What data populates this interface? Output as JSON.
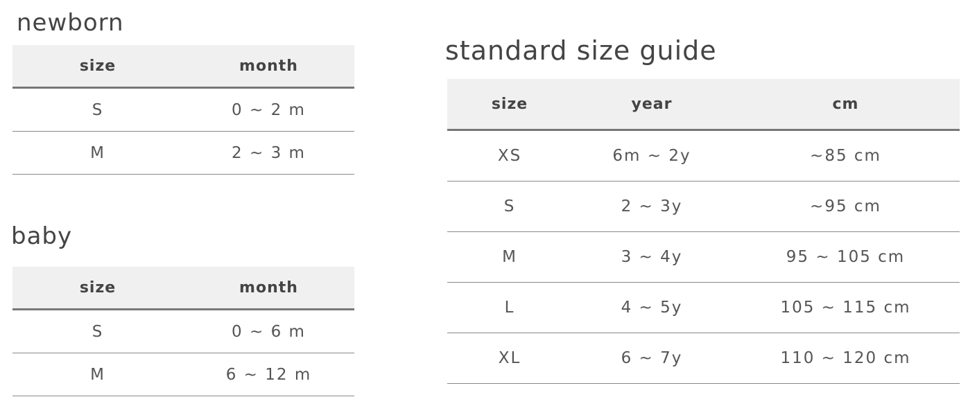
{
  "newborn": {
    "title": "newborn",
    "headers": [
      "size",
      "month"
    ],
    "rows": [
      [
        "S",
        "0 ~ 2 m"
      ],
      [
        "M",
        "2 ~ 3 m"
      ]
    ]
  },
  "baby": {
    "title": "baby",
    "headers": [
      "size",
      "month"
    ],
    "rows": [
      [
        "S",
        "0 ~ 6 m"
      ],
      [
        "M",
        "6 ~ 12 m"
      ]
    ]
  },
  "standard": {
    "title": "standard size guide",
    "headers": [
      "size",
      "year",
      "cm"
    ],
    "rows": [
      [
        "XS",
        "6m ~ 2y",
        "~85 cm"
      ],
      [
        "S",
        "2 ~ 3y",
        "~95 cm"
      ],
      [
        "M",
        "3 ~ 4y",
        "95 ~ 105 cm"
      ],
      [
        "L",
        "4 ~ 5y",
        "105 ~ 115 cm"
      ],
      [
        "XL",
        "6 ~ 7y",
        "110 ~ 120 cm"
      ]
    ]
  }
}
